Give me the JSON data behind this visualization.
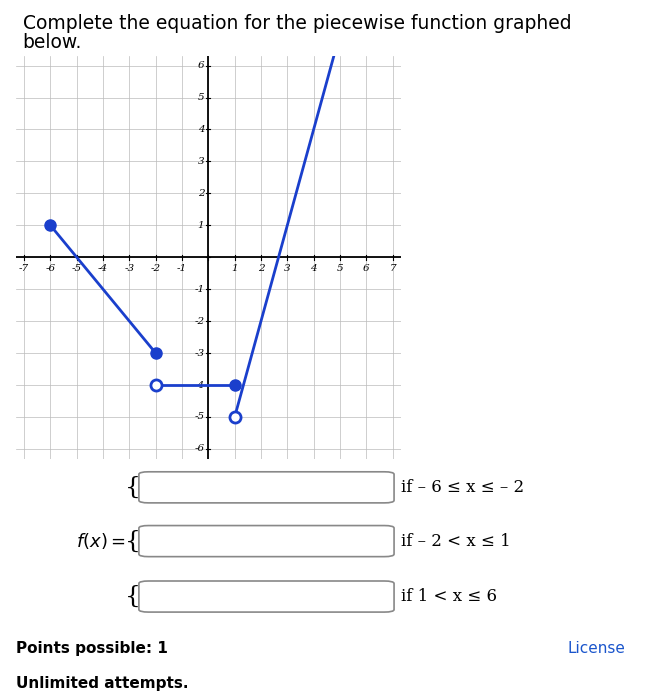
{
  "title_line1": "Complete the equation for the piecewise function graphed",
  "title_line2": "below.",
  "title_fontsize": 13.5,
  "bg_color": "#ffffff",
  "graph_bg": "#ffffff",
  "grid_color": "#bbbbbb",
  "line_color": "#1a3fcc",
  "xmin": -7,
  "xmax": 7,
  "ymin": -6,
  "ymax": 6,
  "segments": [
    {
      "x": [
        -6,
        -2
      ],
      "y": [
        1,
        -3
      ],
      "filled_start": true,
      "filled_end": true
    },
    {
      "x": [
        -2,
        1
      ],
      "y": [
        -4,
        -4
      ],
      "filled_start": false,
      "filled_end": true
    },
    {
      "x": [
        1,
        5
      ],
      "y": [
        -5,
        7
      ],
      "filled_start": false,
      "filled_end": false
    }
  ],
  "piecewise_conditions": [
    "if – 6 ≤ x ≤ – 2",
    "if – 2 < x ≤ 1",
    "if 1 < x ≤ 6"
  ],
  "footer_bg": "#e8f5e9",
  "footer_text1": "Points possible: 1",
  "footer_text2": "Unlimited attempts.",
  "footer_link": "License"
}
